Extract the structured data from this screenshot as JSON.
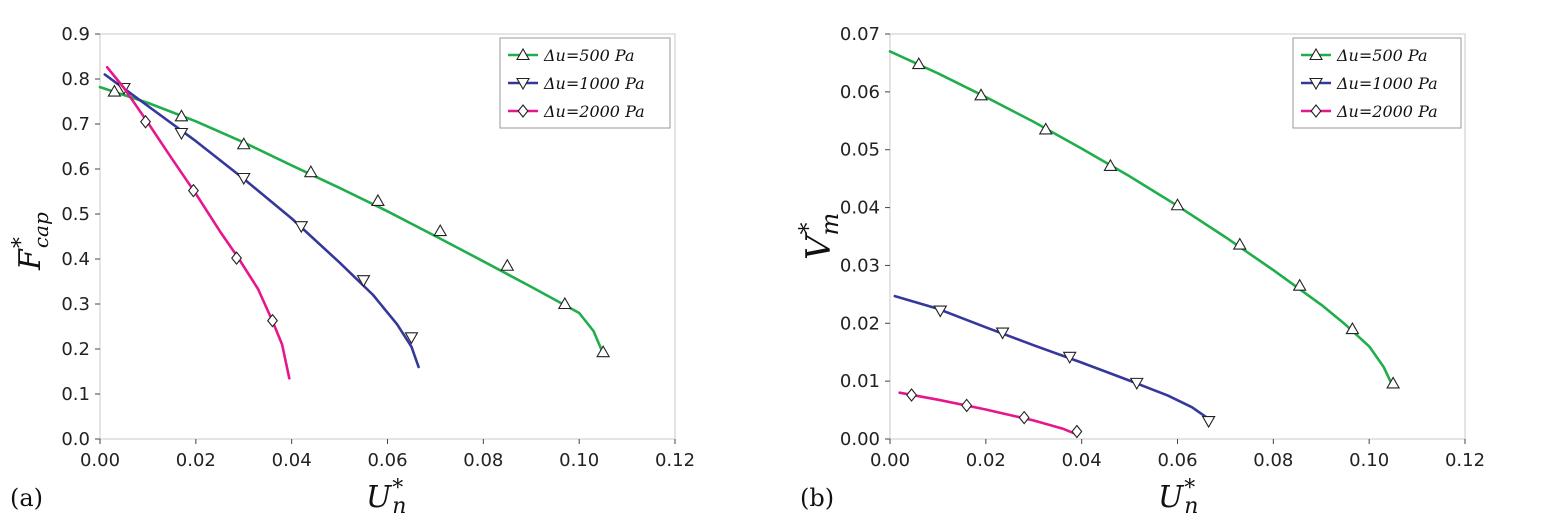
{
  "chart_data": [
    {
      "type": "line",
      "panel_label": "(a)",
      "xlabel": "U",
      "xlabel_sup": "*",
      "xlabel_sub": "n",
      "ylabel": "F",
      "ylabel_sup": "*",
      "ylabel_sub": "cap",
      "xlim": [
        0,
        0.12
      ],
      "ylim": [
        0,
        0.9
      ],
      "xticks": [
        "0.00",
        "0.02",
        "0.04",
        "0.06",
        "0.08",
        "0.10",
        "0.12"
      ],
      "yticks": [
        "0.0",
        "0.1",
        "0.2",
        "0.3",
        "0.4",
        "0.5",
        "0.6",
        "0.7",
        "0.8",
        "0.9"
      ],
      "legend_position": "top-right",
      "series": [
        {
          "name": "Δu=500 Pa",
          "color": "#1fae4b",
          "marker": "triangle-up",
          "curve": [
            [
              0.0,
              0.782
            ],
            [
              0.01,
              0.747
            ],
            [
              0.02,
              0.706
            ],
            [
              0.03,
              0.659
            ],
            [
              0.04,
              0.608
            ],
            [
              0.05,
              0.558
            ],
            [
              0.06,
              0.506
            ],
            [
              0.07,
              0.451
            ],
            [
              0.08,
              0.395
            ],
            [
              0.09,
              0.338
            ],
            [
              0.1,
              0.28
            ],
            [
              0.103,
              0.24
            ],
            [
              0.105,
              0.19
            ]
          ],
          "markers": [
            [
              0.003,
              0.772
            ],
            [
              0.017,
              0.717
            ],
            [
              0.03,
              0.655
            ],
            [
              0.044,
              0.593
            ],
            [
              0.058,
              0.529
            ],
            [
              0.071,
              0.462
            ],
            [
              0.085,
              0.385
            ],
            [
              0.097,
              0.3
            ],
            [
              0.105,
              0.193
            ]
          ]
        },
        {
          "name": "Δu=1000 Pa",
          "color": "#35379a",
          "marker": "triangle-down",
          "curve": [
            [
              0.001,
              0.81
            ],
            [
              0.01,
              0.74
            ],
            [
              0.02,
              0.662
            ],
            [
              0.03,
              0.578
            ],
            [
              0.04,
              0.49
            ],
            [
              0.05,
              0.392
            ],
            [
              0.057,
              0.32
            ],
            [
              0.062,
              0.255
            ],
            [
              0.065,
              0.205
            ],
            [
              0.0665,
              0.16
            ]
          ],
          "markers": [
            [
              0.005,
              0.78
            ],
            [
              0.017,
              0.68
            ],
            [
              0.03,
              0.58
            ],
            [
              0.042,
              0.473
            ],
            [
              0.055,
              0.353
            ],
            [
              0.065,
              0.226
            ]
          ]
        },
        {
          "name": "Δu=2000 Pa",
          "color": "#e6168c",
          "marker": "diamond",
          "curve": [
            [
              0.0015,
              0.826
            ],
            [
              0.005,
              0.78
            ],
            [
              0.01,
              0.703
            ],
            [
              0.015,
              0.623
            ],
            [
              0.02,
              0.545
            ],
            [
              0.025,
              0.462
            ],
            [
              0.029,
              0.4
            ],
            [
              0.033,
              0.333
            ],
            [
              0.036,
              0.262
            ],
            [
              0.038,
              0.21
            ],
            [
              0.0395,
              0.135
            ]
          ],
          "markers": [
            [
              0.0095,
              0.705
            ],
            [
              0.0195,
              0.552
            ],
            [
              0.0285,
              0.402
            ],
            [
              0.036,
              0.263
            ]
          ]
        }
      ]
    },
    {
      "type": "line",
      "panel_label": "(b)",
      "xlabel": "U",
      "xlabel_sup": "*",
      "xlabel_sub": "n",
      "ylabel": "V",
      "ylabel_sup": "*",
      "ylabel_sub": "m",
      "xlim": [
        0,
        0.12
      ],
      "ylim": [
        0,
        0.07
      ],
      "xticks": [
        "0.00",
        "0.02",
        "0.04",
        "0.06",
        "0.08",
        "0.10",
        "0.12"
      ],
      "yticks": [
        "0.00",
        "0.01",
        "0.02",
        "0.03",
        "0.04",
        "0.05",
        "0.06",
        "0.07"
      ],
      "legend_position": "top-right",
      "series": [
        {
          "name": "Δu=500 Pa",
          "color": "#1fae4b",
          "marker": "triangle-up",
          "curve": [
            [
              0.0,
              0.067
            ],
            [
              0.01,
              0.0632
            ],
            [
              0.02,
              0.0591
            ],
            [
              0.03,
              0.0548
            ],
            [
              0.04,
              0.0502
            ],
            [
              0.05,
              0.0454
            ],
            [
              0.06,
              0.0403
            ],
            [
              0.07,
              0.0349
            ],
            [
              0.08,
              0.0292
            ],
            [
              0.09,
              0.0232
            ],
            [
              0.095,
              0.0198
            ],
            [
              0.1,
              0.016
            ],
            [
              0.103,
              0.0125
            ],
            [
              0.105,
              0.009
            ]
          ],
          "markers": [
            [
              0.006,
              0.0648
            ],
            [
              0.019,
              0.0594
            ],
            [
              0.0325,
              0.0535
            ],
            [
              0.046,
              0.0472
            ],
            [
              0.06,
              0.0404
            ],
            [
              0.073,
              0.0336
            ],
            [
              0.0855,
              0.0265
            ],
            [
              0.0965,
              0.019
            ],
            [
              0.105,
              0.0096
            ]
          ]
        },
        {
          "name": "Δu=1000 Pa",
          "color": "#35379a",
          "marker": "triangle-down",
          "curve": [
            [
              0.001,
              0.0247
            ],
            [
              0.01,
              0.0225
            ],
            [
              0.02,
              0.0193
            ],
            [
              0.03,
              0.0162
            ],
            [
              0.04,
              0.0132
            ],
            [
              0.05,
              0.0101
            ],
            [
              0.058,
              0.0075
            ],
            [
              0.063,
              0.0055
            ],
            [
              0.0665,
              0.0035
            ]
          ],
          "markers": [
            [
              0.0105,
              0.0222
            ],
            [
              0.0235,
              0.0184
            ],
            [
              0.0375,
              0.0142
            ],
            [
              0.0515,
              0.0097
            ],
            [
              0.0665,
              0.0031
            ]
          ]
        },
        {
          "name": "Δu=2000 Pa",
          "color": "#e6168c",
          "marker": "diamond",
          "curve": [
            [
              0.002,
              0.008
            ],
            [
              0.01,
              0.0068
            ],
            [
              0.02,
              0.0051
            ],
            [
              0.03,
              0.0032
            ],
            [
              0.036,
              0.0018
            ],
            [
              0.039,
              0.0008
            ]
          ],
          "markers": [
            [
              0.0045,
              0.0076
            ],
            [
              0.016,
              0.0058
            ],
            [
              0.028,
              0.0037
            ],
            [
              0.039,
              0.0013
            ]
          ]
        }
      ]
    }
  ]
}
